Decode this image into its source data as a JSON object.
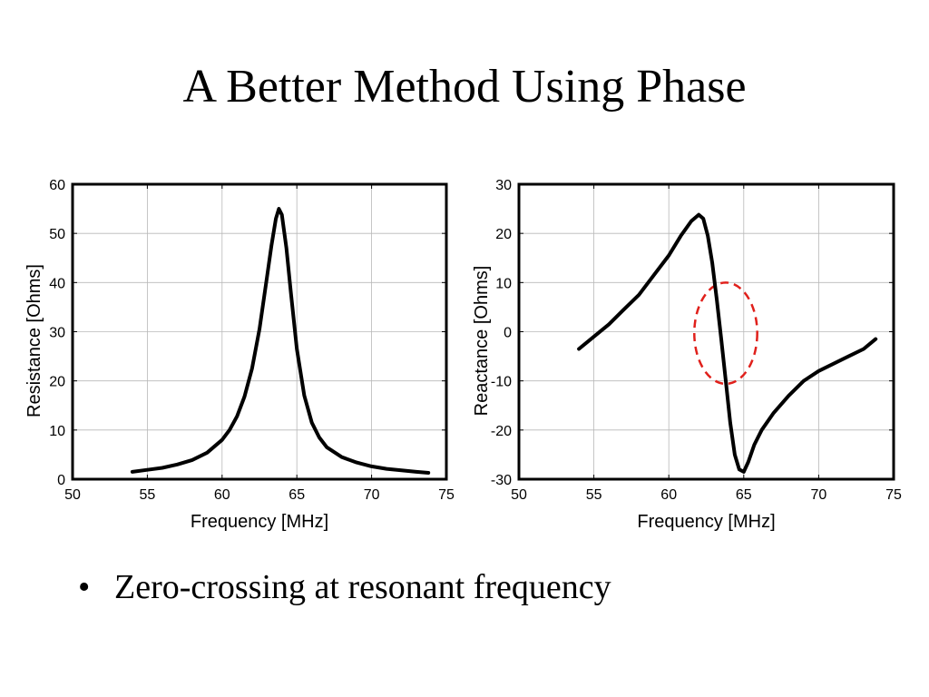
{
  "slide": {
    "title": "A Better Method Using Phase",
    "bullet": {
      "marker": "•",
      "text": "Zero-crossing at resonant frequency"
    }
  },
  "chart_data": [
    {
      "type": "line",
      "xlabel": "Frequency [MHz]",
      "ylabel": "Resistance [Ohms]",
      "xlim": [
        50,
        75
      ],
      "ylim": [
        0,
        60
      ],
      "xticks": [
        50,
        55,
        60,
        65,
        70,
        75
      ],
      "yticks": [
        0,
        10,
        20,
        30,
        40,
        50,
        60
      ],
      "grid": true,
      "series": [
        {
          "color": "#000000",
          "x": [
            54,
            55,
            56,
            57,
            58,
            59,
            60,
            60.5,
            61,
            61.5,
            62,
            62.5,
            63,
            63.3,
            63.6,
            63.8,
            64,
            64.3,
            64.6,
            65,
            65.5,
            66,
            66.5,
            67,
            68,
            69,
            70,
            71,
            72,
            73,
            73.8
          ],
          "y": [
            1.5,
            1.9,
            2.3,
            3.0,
            3.9,
            5.4,
            8.0,
            10.0,
            12.8,
            16.8,
            22.5,
            30.5,
            41.0,
            47.5,
            53.0,
            55.0,
            53.8,
            47.0,
            38.0,
            26.5,
            17.0,
            11.5,
            8.5,
            6.5,
            4.5,
            3.4,
            2.6,
            2.1,
            1.8,
            1.5,
            1.3
          ]
        }
      ]
    },
    {
      "type": "line",
      "xlabel": "Frequency [MHz]",
      "ylabel": "Reactance [Ohms]",
      "xlim": [
        50,
        75
      ],
      "ylim": [
        -30,
        30
      ],
      "xticks": [
        50,
        55,
        60,
        65,
        70,
        75
      ],
      "yticks": [
        -30,
        -20,
        -10,
        0,
        10,
        20,
        30
      ],
      "grid": true,
      "annotation": {
        "shape": "dashed-ellipse",
        "color": "#e0201b",
        "center": [
          63.8,
          -0.3
        ],
        "radius_x": 2.1,
        "radius_y": 10.3
      },
      "series": [
        {
          "color": "#000000",
          "x": [
            54,
            55,
            56,
            57,
            58,
            59,
            60,
            60.8,
            61.5,
            62,
            62.3,
            62.6,
            62.9,
            63.2,
            63.5,
            63.8,
            64.1,
            64.4,
            64.7,
            65,
            65.3,
            65.7,
            66.2,
            67,
            68,
            69,
            70,
            71,
            72,
            73,
            73.8
          ],
          "y": [
            -3.5,
            -1.0,
            1.5,
            4.5,
            7.5,
            11.5,
            15.5,
            19.5,
            22.5,
            23.8,
            23.0,
            19.5,
            14.0,
            6.5,
            -1.5,
            -10.0,
            -18.5,
            -25.0,
            -28.0,
            -28.5,
            -26.5,
            -23.0,
            -20.0,
            -16.5,
            -13.0,
            -10.0,
            -8.0,
            -6.5,
            -5.0,
            -3.5,
            -1.5
          ]
        }
      ]
    }
  ]
}
